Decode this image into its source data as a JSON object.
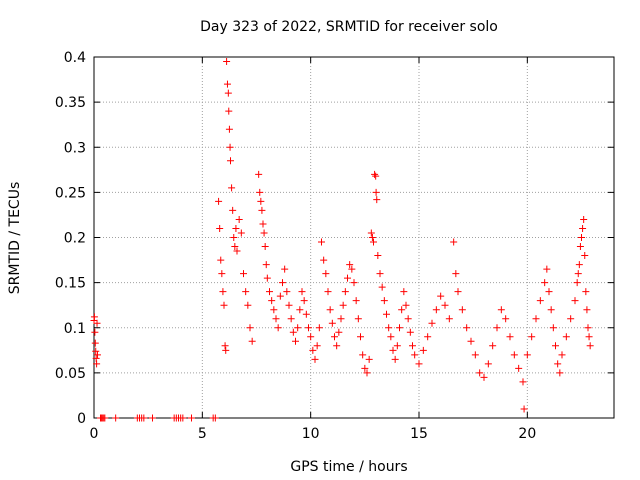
{
  "chart_data": {
    "type": "scatter",
    "title": "Day 323 of 2022, SRMTID for receiver solo",
    "xlabel": "GPS time / hours",
    "ylabel": "SRMTID / TECUs",
    "xlim": [
      0,
      24
    ],
    "ylim": [
      0,
      0.4
    ],
    "x_ticks": [
      0,
      5,
      10,
      15,
      20
    ],
    "y_ticks": [
      0,
      0.05,
      0.1,
      0.15,
      0.2,
      0.25,
      0.3,
      0.35,
      0.4
    ],
    "x_tick_labels": [
      "0",
      "5",
      "10",
      "15",
      "20"
    ],
    "y_tick_labels": [
      "0",
      "0.05",
      "0.1",
      "0.15",
      "0.2",
      "0.25",
      "0.3",
      "0.35",
      "0.4"
    ],
    "grid": true,
    "marker": "+",
    "color": "#ff0000",
    "series": [
      {
        "name": "SRMTID",
        "points": [
          [
            0.0,
            0.108
          ],
          [
            0.02,
            0.112
          ],
          [
            0.04,
            0.095
          ],
          [
            0.06,
            0.083
          ],
          [
            0.08,
            0.074
          ],
          [
            0.1,
            0.066
          ],
          [
            0.12,
            0.06
          ],
          [
            0.14,
            0.105
          ],
          [
            0.16,
            0.07
          ],
          [
            0.3,
            0
          ],
          [
            0.35,
            0
          ],
          [
            0.4,
            0
          ],
          [
            0.45,
            0
          ],
          [
            0.5,
            0
          ],
          [
            1.0,
            0
          ],
          [
            2.0,
            0
          ],
          [
            2.1,
            0
          ],
          [
            2.2,
            0
          ],
          [
            2.3,
            0
          ],
          [
            2.7,
            0
          ],
          [
            3.7,
            0
          ],
          [
            3.8,
            0
          ],
          [
            3.9,
            0
          ],
          [
            4.0,
            0
          ],
          [
            4.1,
            0
          ],
          [
            4.5,
            0
          ],
          [
            5.5,
            0
          ],
          [
            5.6,
            0
          ],
          [
            5.75,
            0.24
          ],
          [
            5.8,
            0.21
          ],
          [
            5.85,
            0.175
          ],
          [
            5.9,
            0.16
          ],
          [
            5.95,
            0.14
          ],
          [
            6.0,
            0.125
          ],
          [
            6.05,
            0.08
          ],
          [
            6.08,
            0.075
          ],
          [
            6.12,
            0.395
          ],
          [
            6.16,
            0.37
          ],
          [
            6.2,
            0.36
          ],
          [
            6.22,
            0.34
          ],
          [
            6.25,
            0.32
          ],
          [
            6.28,
            0.3
          ],
          [
            6.3,
            0.285
          ],
          [
            6.35,
            0.255
          ],
          [
            6.4,
            0.23
          ],
          [
            6.45,
            0.2
          ],
          [
            6.5,
            0.19
          ],
          [
            6.55,
            0.21
          ],
          [
            6.6,
            0.185
          ],
          [
            6.7,
            0.22
          ],
          [
            6.8,
            0.205
          ],
          [
            6.9,
            0.16
          ],
          [
            7.0,
            0.14
          ],
          [
            7.1,
            0.125
          ],
          [
            7.2,
            0.1
          ],
          [
            7.3,
            0.085
          ],
          [
            7.6,
            0.27
          ],
          [
            7.65,
            0.25
          ],
          [
            7.7,
            0.24
          ],
          [
            7.75,
            0.23
          ],
          [
            7.8,
            0.215
          ],
          [
            7.85,
            0.205
          ],
          [
            7.9,
            0.19
          ],
          [
            7.95,
            0.17
          ],
          [
            8.0,
            0.155
          ],
          [
            8.1,
            0.14
          ],
          [
            8.2,
            0.13
          ],
          [
            8.3,
            0.12
          ],
          [
            8.4,
            0.11
          ],
          [
            8.5,
            0.1
          ],
          [
            8.6,
            0.135
          ],
          [
            8.7,
            0.15
          ],
          [
            8.8,
            0.165
          ],
          [
            8.9,
            0.14
          ],
          [
            9.0,
            0.125
          ],
          [
            9.1,
            0.11
          ],
          [
            9.2,
            0.095
          ],
          [
            9.3,
            0.085
          ],
          [
            9.4,
            0.1
          ],
          [
            9.5,
            0.12
          ],
          [
            9.6,
            0.14
          ],
          [
            9.7,
            0.13
          ],
          [
            9.8,
            0.115
          ],
          [
            9.9,
            0.1
          ],
          [
            10.0,
            0.09
          ],
          [
            10.1,
            0.075
          ],
          [
            10.2,
            0.065
          ],
          [
            10.3,
            0.08
          ],
          [
            10.4,
            0.1
          ],
          [
            10.5,
            0.195
          ],
          [
            10.6,
            0.175
          ],
          [
            10.7,
            0.16
          ],
          [
            10.8,
            0.14
          ],
          [
            10.9,
            0.12
          ],
          [
            11.0,
            0.105
          ],
          [
            11.1,
            0.09
          ],
          [
            11.2,
            0.08
          ],
          [
            11.3,
            0.095
          ],
          [
            11.4,
            0.11
          ],
          [
            11.5,
            0.125
          ],
          [
            11.6,
            0.14
          ],
          [
            11.7,
            0.155
          ],
          [
            11.8,
            0.17
          ],
          [
            11.9,
            0.165
          ],
          [
            12.0,
            0.15
          ],
          [
            12.1,
            0.13
          ],
          [
            12.2,
            0.11
          ],
          [
            12.3,
            0.09
          ],
          [
            12.4,
            0.07
          ],
          [
            12.5,
            0.055
          ],
          [
            12.6,
            0.05
          ],
          [
            12.7,
            0.065
          ],
          [
            12.8,
            0.205
          ],
          [
            12.85,
            0.2
          ],
          [
            12.9,
            0.195
          ],
          [
            12.95,
            0.27
          ],
          [
            13.0,
            0.268
          ],
          [
            13.02,
            0.25
          ],
          [
            13.05,
            0.242
          ],
          [
            13.1,
            0.18
          ],
          [
            13.2,
            0.16
          ],
          [
            13.3,
            0.145
          ],
          [
            13.4,
            0.13
          ],
          [
            13.5,
            0.115
          ],
          [
            13.6,
            0.1
          ],
          [
            13.7,
            0.09
          ],
          [
            13.8,
            0.075
          ],
          [
            13.9,
            0.065
          ],
          [
            14.0,
            0.08
          ],
          [
            14.1,
            0.1
          ],
          [
            14.2,
            0.12
          ],
          [
            14.3,
            0.14
          ],
          [
            14.4,
            0.125
          ],
          [
            14.5,
            0.11
          ],
          [
            14.6,
            0.095
          ],
          [
            14.7,
            0.08
          ],
          [
            14.8,
            0.07
          ],
          [
            15.0,
            0.06
          ],
          [
            15.2,
            0.075
          ],
          [
            15.4,
            0.09
          ],
          [
            15.6,
            0.105
          ],
          [
            15.8,
            0.12
          ],
          [
            16.0,
            0.135
          ],
          [
            16.2,
            0.125
          ],
          [
            16.4,
            0.11
          ],
          [
            16.6,
            0.195
          ],
          [
            16.7,
            0.16
          ],
          [
            16.8,
            0.14
          ],
          [
            17.0,
            0.12
          ],
          [
            17.2,
            0.1
          ],
          [
            17.4,
            0.085
          ],
          [
            17.6,
            0.07
          ],
          [
            17.8,
            0.05
          ],
          [
            18.0,
            0.045
          ],
          [
            18.2,
            0.06
          ],
          [
            18.4,
            0.08
          ],
          [
            18.6,
            0.1
          ],
          [
            18.8,
            0.12
          ],
          [
            19.0,
            0.11
          ],
          [
            19.2,
            0.09
          ],
          [
            19.4,
            0.07
          ],
          [
            19.6,
            0.055
          ],
          [
            19.8,
            0.04
          ],
          [
            19.85,
            0.01
          ],
          [
            20.0,
            0.07
          ],
          [
            20.2,
            0.09
          ],
          [
            20.4,
            0.11
          ],
          [
            20.6,
            0.13
          ],
          [
            20.8,
            0.15
          ],
          [
            20.9,
            0.165
          ],
          [
            21.0,
            0.14
          ],
          [
            21.1,
            0.12
          ],
          [
            21.2,
            0.1
          ],
          [
            21.3,
            0.08
          ],
          [
            21.4,
            0.06
          ],
          [
            21.5,
            0.05
          ],
          [
            21.6,
            0.07
          ],
          [
            21.8,
            0.09
          ],
          [
            22.0,
            0.11
          ],
          [
            22.2,
            0.13
          ],
          [
            22.3,
            0.15
          ],
          [
            22.35,
            0.16
          ],
          [
            22.4,
            0.17
          ],
          [
            22.45,
            0.19
          ],
          [
            22.5,
            0.2
          ],
          [
            22.55,
            0.21
          ],
          [
            22.6,
            0.22
          ],
          [
            22.65,
            0.18
          ],
          [
            22.7,
            0.14
          ],
          [
            22.75,
            0.12
          ],
          [
            22.8,
            0.1
          ],
          [
            22.85,
            0.09
          ],
          [
            22.9,
            0.08
          ]
        ]
      }
    ]
  }
}
